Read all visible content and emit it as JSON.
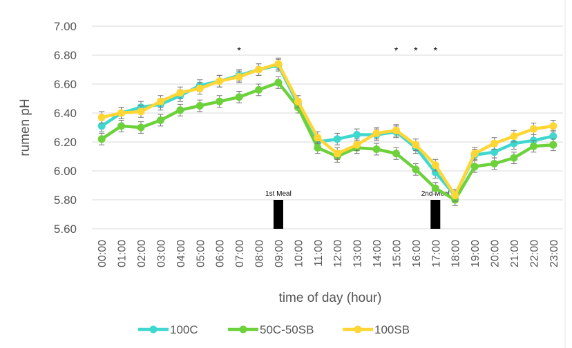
{
  "chart_data": {
    "type": "line",
    "y_label": "rumen pH",
    "x_label": "time of day (hour)",
    "categories": [
      "00:00",
      "01:00",
      "02:00",
      "03:00",
      "04:00",
      "05:00",
      "06:00",
      "07:00",
      "08:00",
      "09:00",
      "10:00",
      "11:00",
      "12:00",
      "13:00",
      "14:00",
      "15:00",
      "16:00",
      "17:00",
      "18:00",
      "19:00",
      "20:00",
      "21:00",
      "22:00",
      "23:00"
    ],
    "series": [
      {
        "name": "100C",
        "color": "#3ed8cf",
        "values": [
          6.31,
          6.4,
          6.44,
          6.46,
          6.52,
          6.59,
          6.62,
          6.66,
          6.7,
          6.73,
          6.46,
          6.2,
          6.22,
          6.25,
          6.25,
          6.27,
          6.16,
          5.99,
          5.83,
          6.11,
          6.13,
          6.19,
          6.21,
          6.24
        ],
        "errors": [
          0.04,
          0.04,
          0.04,
          0.04,
          0.04,
          0.04,
          0.04,
          0.04,
          0.04,
          0.04,
          0.04,
          0.04,
          0.04,
          0.04,
          0.04,
          0.04,
          0.04,
          0.04,
          0.04,
          0.04,
          0.04,
          0.04,
          0.04,
          0.04
        ]
      },
      {
        "name": "50C-50SB",
        "color": "#6dd13c",
        "values": [
          6.22,
          6.31,
          6.3,
          6.35,
          6.42,
          6.45,
          6.48,
          6.51,
          6.56,
          6.61,
          6.44,
          6.16,
          6.1,
          6.16,
          6.15,
          6.12,
          6.01,
          5.88,
          5.8,
          6.03,
          6.05,
          6.09,
          6.17,
          6.18
        ],
        "errors": [
          0.04,
          0.04,
          0.04,
          0.04,
          0.04,
          0.04,
          0.04,
          0.04,
          0.04,
          0.04,
          0.04,
          0.04,
          0.04,
          0.04,
          0.04,
          0.04,
          0.04,
          0.04,
          0.04,
          0.04,
          0.04,
          0.04,
          0.04,
          0.04
        ]
      },
      {
        "name": "100SB",
        "color": "#ffd634",
        "values": [
          6.37,
          6.4,
          6.41,
          6.48,
          6.54,
          6.57,
          6.62,
          6.65,
          6.7,
          6.74,
          6.48,
          6.23,
          6.12,
          6.18,
          6.26,
          6.28,
          6.18,
          6.04,
          5.83,
          6.12,
          6.19,
          6.24,
          6.29,
          6.31
        ],
        "errors": [
          0.04,
          0.04,
          0.04,
          0.04,
          0.04,
          0.04,
          0.04,
          0.04,
          0.04,
          0.04,
          0.04,
          0.04,
          0.04,
          0.04,
          0.04,
          0.04,
          0.04,
          0.04,
          0.04,
          0.04,
          0.04,
          0.04,
          0.04,
          0.04
        ]
      }
    ],
    "meals": [
      {
        "label": "1st Meal",
        "category": "09:00",
        "top": 5.8
      },
      {
        "label": "2nd Meal",
        "category": "17:00",
        "top": 5.8
      }
    ],
    "significance": [
      {
        "text": "*",
        "category": "07:00"
      },
      {
        "text": "*",
        "category": "15:00"
      },
      {
        "text": "*",
        "category": "16:00"
      },
      {
        "text": "*",
        "category": "17:00"
      }
    ],
    "ylim": [
      5.6,
      7.0
    ],
    "yticks": [
      {
        "value": 5.6,
        "label": "5.60"
      },
      {
        "value": 5.8,
        "label": "5.80"
      },
      {
        "value": 6.0,
        "label": "6.00"
      },
      {
        "value": 6.2,
        "label": "6.20"
      },
      {
        "value": 6.4,
        "label": "6.40"
      },
      {
        "value": 6.6,
        "label": "6.60"
      },
      {
        "value": 6.8,
        "label": "6.80"
      },
      {
        "value": 7.0,
        "label": "7.00"
      }
    ],
    "grid": true,
    "legend": "bottom"
  }
}
